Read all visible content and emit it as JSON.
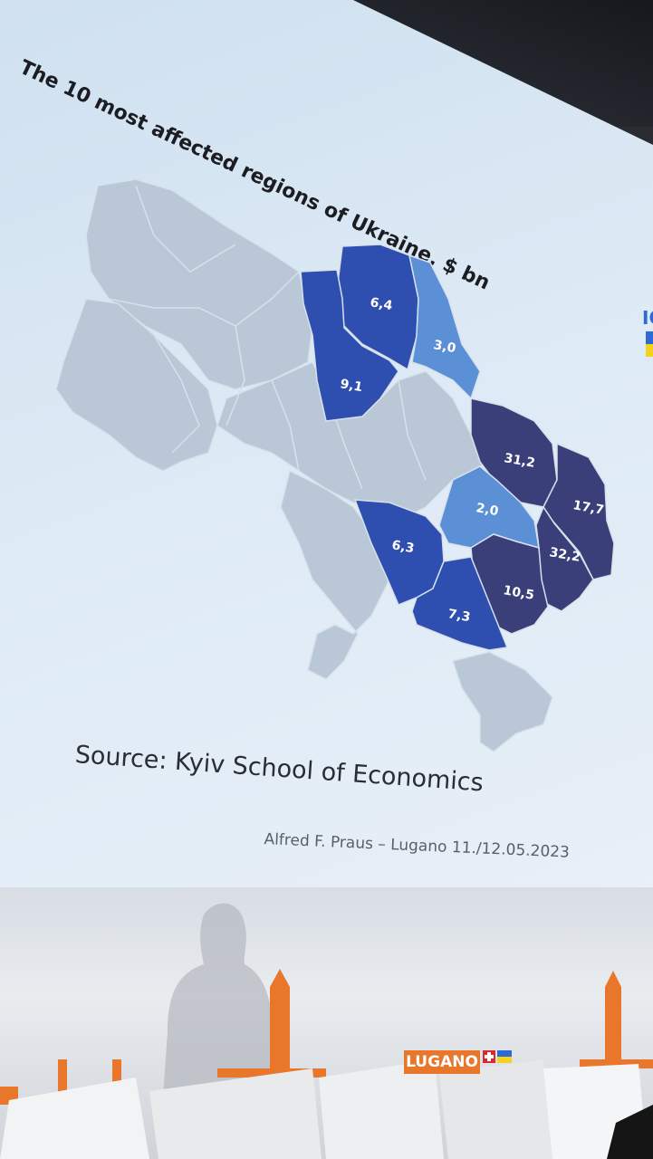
{
  "slide": {
    "title": "The 10 most affected regions of Ukraine, $ bn",
    "source": "Source: Kyiv School of Economics",
    "author_line": "Alfred F. Praus – Lugano 11./12.05.2023",
    "corner_logo_text": "IC"
  },
  "regions": [
    {
      "value": "6,4",
      "shade": "#2f4fb0"
    },
    {
      "value": "3,0",
      "shade": "#5b8fd6"
    },
    {
      "value": "9,1",
      "shade": "#2f4fb0"
    },
    {
      "value": "31,2",
      "shade": "#3a3f7a"
    },
    {
      "value": "17,7",
      "shade": "#3a3f7a"
    },
    {
      "value": "2,0",
      "shade": "#5b8fd6"
    },
    {
      "value": "6,3",
      "shade": "#2f4fb0"
    },
    {
      "value": "32,2",
      "shade": "#3a3f7a"
    },
    {
      "value": "10,5",
      "shade": "#3a3f7a"
    },
    {
      "value": "7,3",
      "shade": "#2f4fb0"
    }
  ],
  "venue": {
    "logo_text": "LUGANO"
  },
  "colors": {
    "unaffected": "#b9c7d6",
    "border": "#d6e1ec",
    "background_screen": "#dce9f5"
  }
}
